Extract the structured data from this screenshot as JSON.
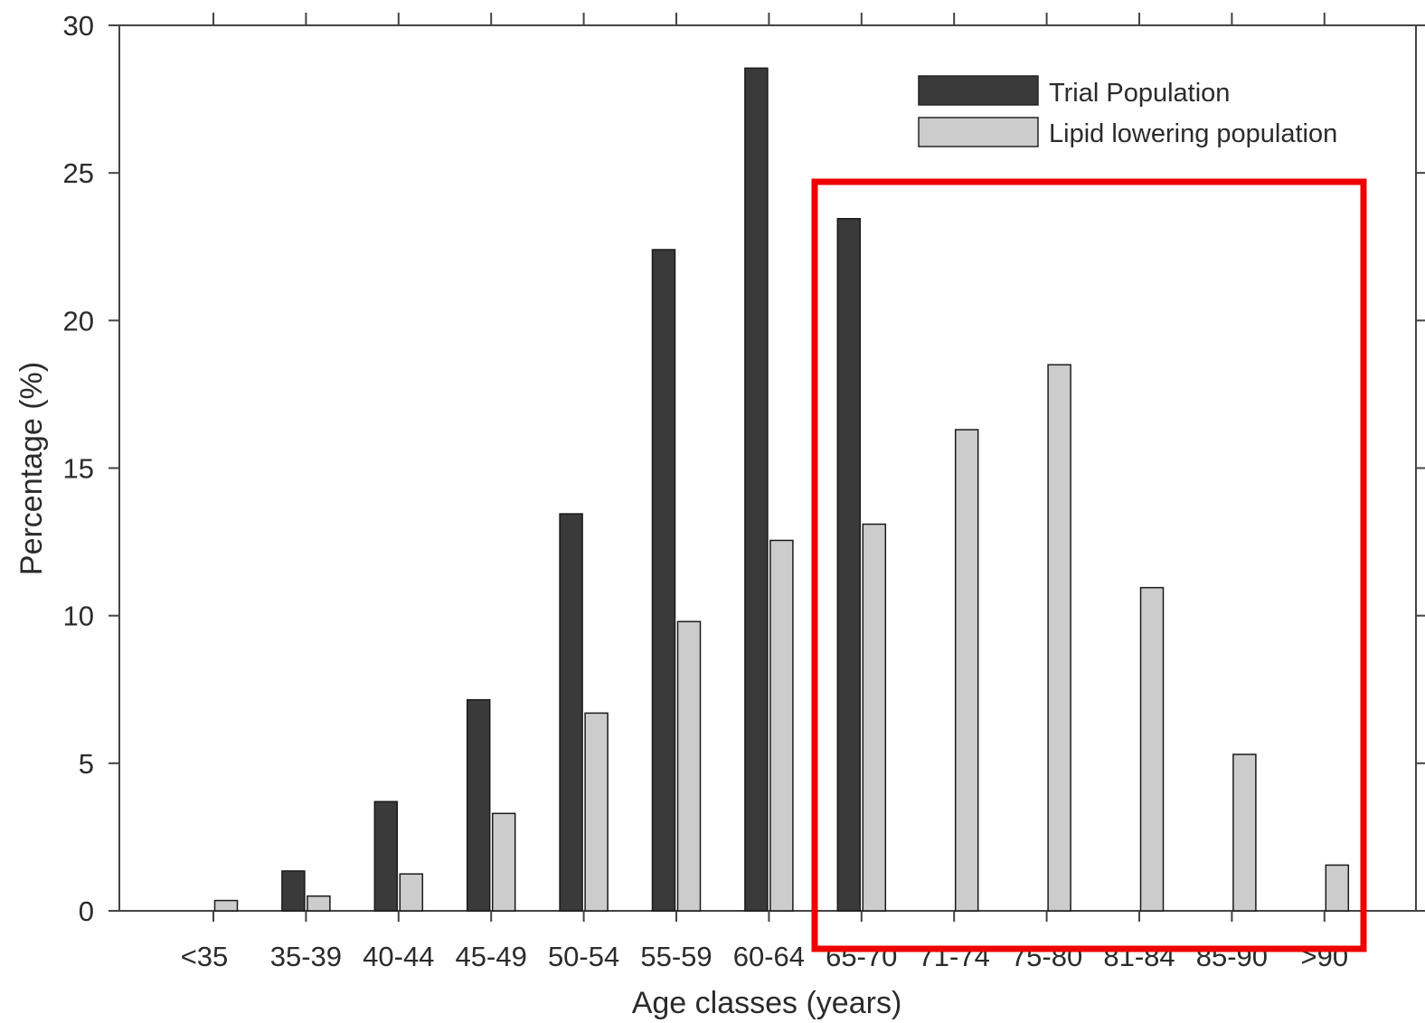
{
  "chart_data": {
    "type": "bar",
    "xlabel": "Age classes (years)",
    "ylabel": "Percentage (%)",
    "ylim": [
      0,
      30
    ],
    "yticks": [
      0,
      5,
      10,
      15,
      20,
      25,
      30
    ],
    "categories": [
      "<35",
      "35-39",
      "40-44",
      "45-49",
      "50-54",
      "55-59",
      "60-64",
      "65-70",
      "71-74",
      "75-80",
      "81-84",
      "85-90",
      ">90"
    ],
    "series": [
      {
        "name": "Trial Population",
        "color": "#3a3a3a",
        "values": [
          0,
          1.35,
          3.7,
          7.15,
          13.45,
          22.4,
          28.55,
          23.45,
          0,
          0,
          0,
          0,
          0
        ]
      },
      {
        "name": "Lipid lowering population",
        "color": "#cccccc",
        "values": [
          0.35,
          0.5,
          1.25,
          3.3,
          6.7,
          9.8,
          12.55,
          13.1,
          16.3,
          18.5,
          10.95,
          5.3,
          1.55
        ]
      }
    ],
    "grid": false,
    "legend_position": "top-right",
    "annotation": {
      "type": "highlight-box",
      "color": "#ee0000",
      "covers_categories": [
        "65-70",
        "71-74",
        "75-80",
        "81-84",
        "85-90",
        ">90"
      ]
    }
  }
}
